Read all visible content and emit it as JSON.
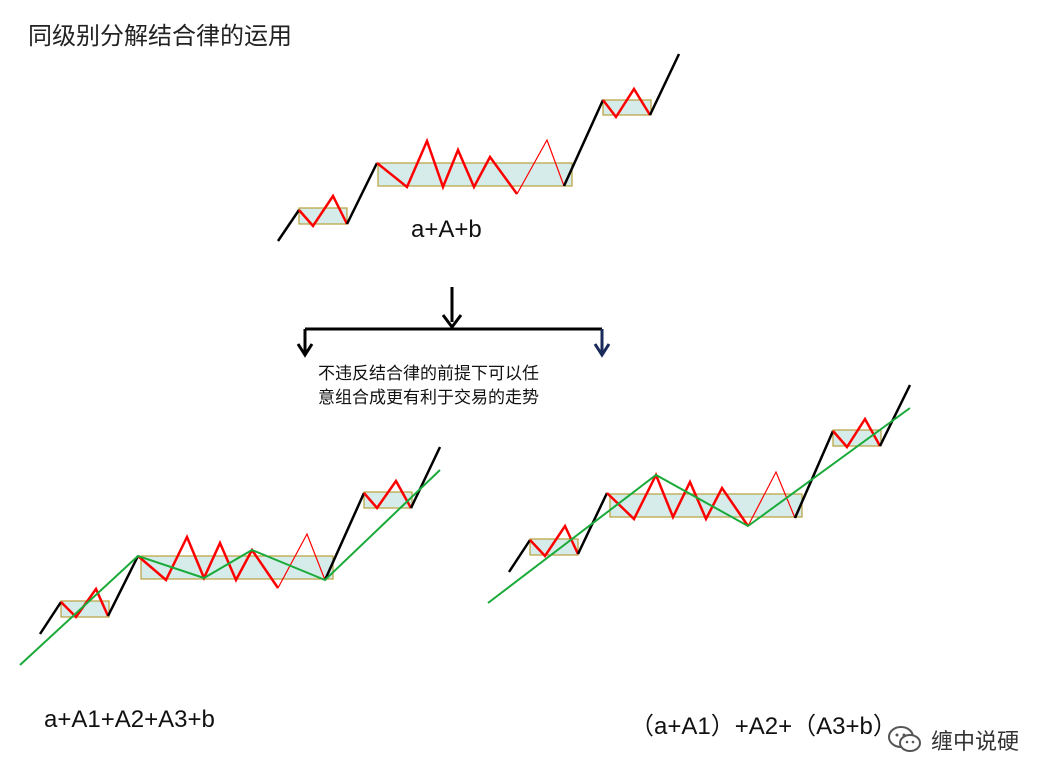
{
  "title": "同级别分解结合律的运用",
  "top_formula": "a+A+b",
  "note": {
    "line1": "不违反结合律的前提下可以任",
    "line2": "意组合成更有利于交易的走势"
  },
  "left_formula": "a+A1+A2+A3+b",
  "right_formula": "（a+A1）+A2+（A3+b）",
  "watermark": "缠中说硬",
  "colors": {
    "black_line": "#000000",
    "red_line": "#ff0000",
    "green_line": "#1aaa3a",
    "box_fill": "#d6ecea",
    "box_border": "#b8a03a",
    "arrow_black": "#000000",
    "arrow_navy": "#1a2a5a"
  },
  "icons": {
    "watermark_icon": "wechat-icon"
  }
}
